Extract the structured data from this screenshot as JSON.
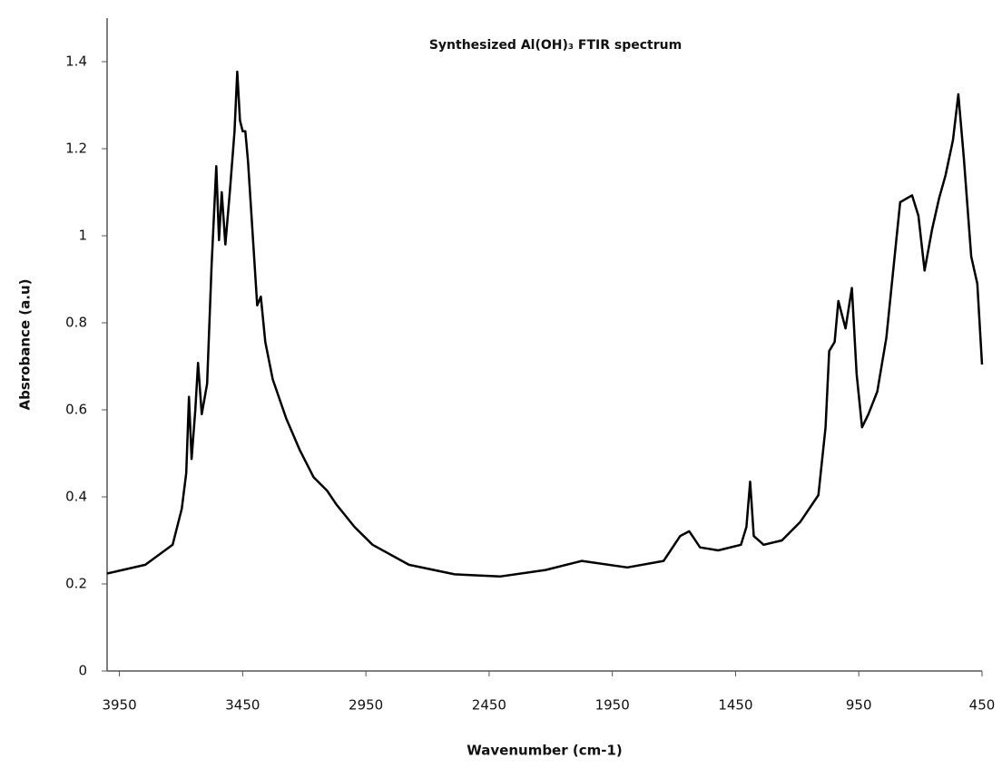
{
  "chart_data": {
    "type": "line",
    "title": "Synthesized Al(OH)₃ FTIR spectrum",
    "x_label": "Wavenumber (cm-1)",
    "y_label": "Absrobance (a.u)",
    "xlim": [
      4000,
      450
    ],
    "xticks": [
      3950,
      3450,
      2950,
      2450,
      1950,
      1450,
      950,
      450
    ],
    "ylim": [
      0,
      1.5
    ],
    "yticks": [
      0,
      0.2,
      0.4,
      0.6,
      0.8,
      1,
      1.2,
      1.4
    ],
    "grid": false,
    "series": [
      {
        "name": "Al(OH)3",
        "color": "#000000",
        "x": [
          4000,
          3845,
          3734,
          3697,
          3679,
          3668,
          3657,
          3642,
          3631,
          3616,
          3594,
          3576,
          3557,
          3546,
          3535,
          3520,
          3502,
          3483,
          3472,
          3461,
          3450,
          3439,
          3428,
          3410,
          3391,
          3376,
          3358,
          3328,
          3273,
          3218,
          3162,
          3107,
          3070,
          2996,
          2923,
          2775,
          2590,
          2406,
          2221,
          2074,
          1889,
          1742,
          1675,
          1638,
          1594,
          1520,
          1428,
          1406,
          1391,
          1376,
          1336,
          1262,
          1188,
          1114,
          1085,
          1070,
          1048,
          1033,
          1004,
          978,
          959,
          937,
          911,
          875,
          838,
          782,
          734,
          708,
          683,
          653,
          624,
          598,
          568,
          546,
          524,
          494,
          469,
          450
        ],
        "values": [
          0.224,
          0.244,
          0.29,
          0.373,
          0.455,
          0.63,
          0.487,
          0.6,
          0.708,
          0.59,
          0.66,
          0.93,
          1.16,
          0.99,
          1.1,
          0.98,
          1.1,
          1.24,
          1.377,
          1.265,
          1.24,
          1.24,
          1.17,
          1.01,
          0.84,
          0.86,
          0.756,
          0.67,
          0.58,
          0.507,
          0.445,
          0.414,
          0.383,
          0.331,
          0.29,
          0.244,
          0.222,
          0.217,
          0.232,
          0.253,
          0.238,
          0.253,
          0.31,
          0.321,
          0.284,
          0.277,
          0.29,
          0.331,
          0.435,
          0.31,
          0.29,
          0.3,
          0.342,
          0.404,
          0.56,
          0.735,
          0.756,
          0.85,
          0.787,
          0.88,
          0.683,
          0.56,
          0.59,
          0.642,
          0.766,
          1.077,
          1.093,
          1.046,
          0.92,
          1.014,
          1.087,
          1.139,
          1.22,
          1.325,
          1.18,
          0.952,
          0.89,
          0.704
        ]
      }
    ]
  }
}
